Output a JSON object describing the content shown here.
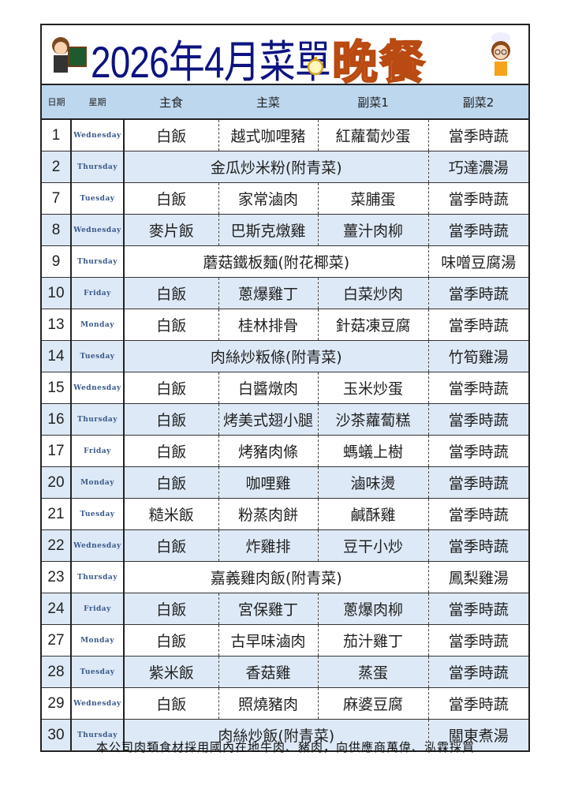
{
  "title": {
    "main": "2026年4月菜單",
    "meal": "晚餐"
  },
  "header": {
    "date": "日期",
    "weekday": "星期",
    "staple": "主食",
    "main_dish": "主菜",
    "side1": "副菜1",
    "side2": "副菜2"
  },
  "colors": {
    "header_bg": "#bdd7ee",
    "alt_row_bg": "#dde9f6",
    "title_color": "#0d1480",
    "meal_color": "#f27419"
  },
  "rows": [
    {
      "date": "1",
      "weekday": "Wednesday",
      "staple": "白飯",
      "main": "越式咖哩豬",
      "side1": "紅蘿蔔炒蛋",
      "side2": "當季時蔬"
    },
    {
      "date": "2",
      "weekday": "Thursday",
      "combined": "金瓜炒米粉(附青菜)",
      "side2": "巧達濃湯"
    },
    {
      "date": "7",
      "weekday": "Tuesday",
      "staple": "白飯",
      "main": "家常滷肉",
      "side1": "菜脯蛋",
      "side2": "當季時蔬"
    },
    {
      "date": "8",
      "weekday": "Wednesday",
      "staple": "麥片飯",
      "main": "巴斯克燉雞",
      "side1": "薑汁肉柳",
      "side2": "當季時蔬"
    },
    {
      "date": "9",
      "weekday": "Thursday",
      "combined": "蘑菇鐵板麵(附花椰菜)",
      "side2": "味噌豆腐湯"
    },
    {
      "date": "10",
      "weekday": "Friday",
      "staple": "白飯",
      "main": "蔥爆雞丁",
      "side1": "白菜炒肉",
      "side2": "當季時蔬"
    },
    {
      "date": "13",
      "weekday": "Monday",
      "staple": "白飯",
      "main": "桂林排骨",
      "side1": "針菇凍豆腐",
      "side2": "當季時蔬"
    },
    {
      "date": "14",
      "weekday": "Tuesday",
      "combined": "肉絲炒粄條(附青菜)",
      "side2": "竹筍雞湯"
    },
    {
      "date": "15",
      "weekday": "Wednesday",
      "staple": "白飯",
      "main": "白醬燉肉",
      "side1": "玉米炒蛋",
      "side2": "當季時蔬"
    },
    {
      "date": "16",
      "weekday": "Thursday",
      "staple": "白飯",
      "main": "烤美式翅小腿",
      "side1": "沙茶蘿蔔糕",
      "side2": "當季時蔬"
    },
    {
      "date": "17",
      "weekday": "Friday",
      "staple": "白飯",
      "main": "烤豬肉條",
      "side1": "螞蟻上樹",
      "side2": "當季時蔬"
    },
    {
      "date": "20",
      "weekday": "Monday",
      "staple": "白飯",
      "main": "咖哩雞",
      "side1": "滷味燙",
      "side2": "當季時蔬"
    },
    {
      "date": "21",
      "weekday": "Tuesday",
      "staple": "糙米飯",
      "main": "粉蒸肉餅",
      "side1": "鹹酥雞",
      "side2": "當季時蔬"
    },
    {
      "date": "22",
      "weekday": "Wednesday",
      "staple": "白飯",
      "main": "炸雞排",
      "side1": "豆干小炒",
      "side2": "當季時蔬"
    },
    {
      "date": "23",
      "weekday": "Thursday",
      "combined": "嘉義雞肉飯(附青菜)",
      "side2": "鳳梨雞湯"
    },
    {
      "date": "24",
      "weekday": "Friday",
      "staple": "白飯",
      "main": "宮保雞丁",
      "side1": "蔥爆肉柳",
      "side2": "當季時蔬"
    },
    {
      "date": "27",
      "weekday": "Monday",
      "staple": "白飯",
      "main": "古早味滷肉",
      "side1": "茄汁雞丁",
      "side2": "當季時蔬"
    },
    {
      "date": "28",
      "weekday": "Tuesday",
      "staple": "紫米飯",
      "main": "香菇雞",
      "side1": "蒸蛋",
      "side2": "當季時蔬"
    },
    {
      "date": "29",
      "weekday": "Wednesday",
      "staple": "白飯",
      "main": "照燒豬肉",
      "side1": "麻婆豆腐",
      "side2": "當季時蔬"
    },
    {
      "date": "30",
      "weekday": "Thursday",
      "combined": "肉絲炒飯(附青菜)",
      "side2": "關東煮湯"
    }
  ],
  "footer": "本公司肉類食材採用國內在地牛肉、豬肉，向供應商萬偉、泓霖採買"
}
